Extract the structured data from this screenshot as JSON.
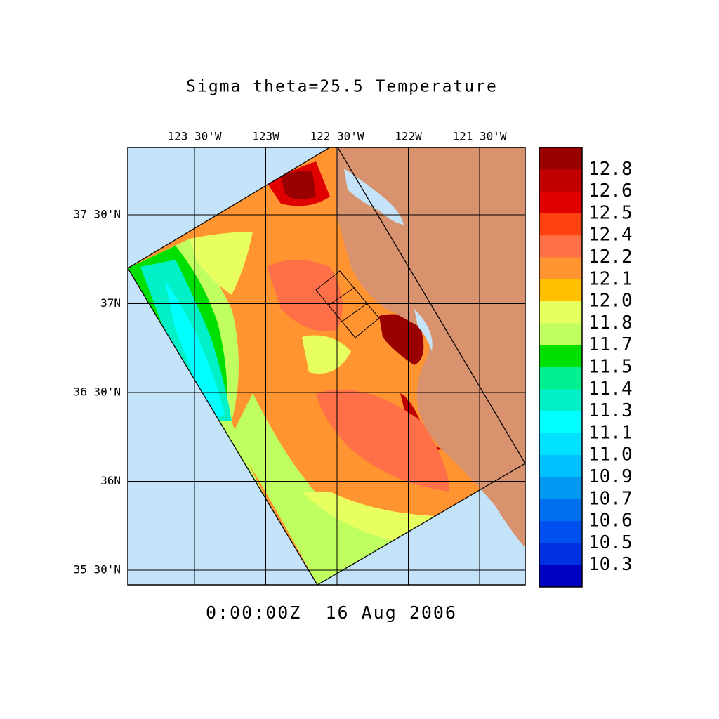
{
  "title": "Sigma_theta=25.5 Temperature",
  "lon_labels": [
    "123 30'W",
    "123W",
    "122 30'W",
    "122W",
    "121 30'W"
  ],
  "lat_labels": [
    "37 30'N",
    "37N",
    "36 30'N",
    "36N",
    "35 30'N"
  ],
  "colorbar": {
    "colors": [
      "#9a0000",
      "#c00000",
      "#e00000",
      "#ff4010",
      "#ff7048",
      "#ff9430",
      "#ffc000",
      "#e8ff60",
      "#c0ff60",
      "#00e000",
      "#00f090",
      "#00f0c8",
      "#00ffff",
      "#00e0ff",
      "#00c0ff",
      "#0098f0",
      "#0070f0",
      "#0050f0",
      "#0030e0",
      "#0000c0"
    ],
    "labels": [
      "12.8",
      "12.6",
      "12.5",
      "12.4",
      "12.2",
      "12.1",
      "12.0",
      "11.8",
      "11.7",
      "11.5",
      "11.4",
      "11.3",
      "11.1",
      "11.0",
      "10.9",
      "10.7",
      "10.6",
      "10.5",
      "10.3"
    ]
  },
  "time_label": "0:00:00Z  16 Aug 2006"
}
